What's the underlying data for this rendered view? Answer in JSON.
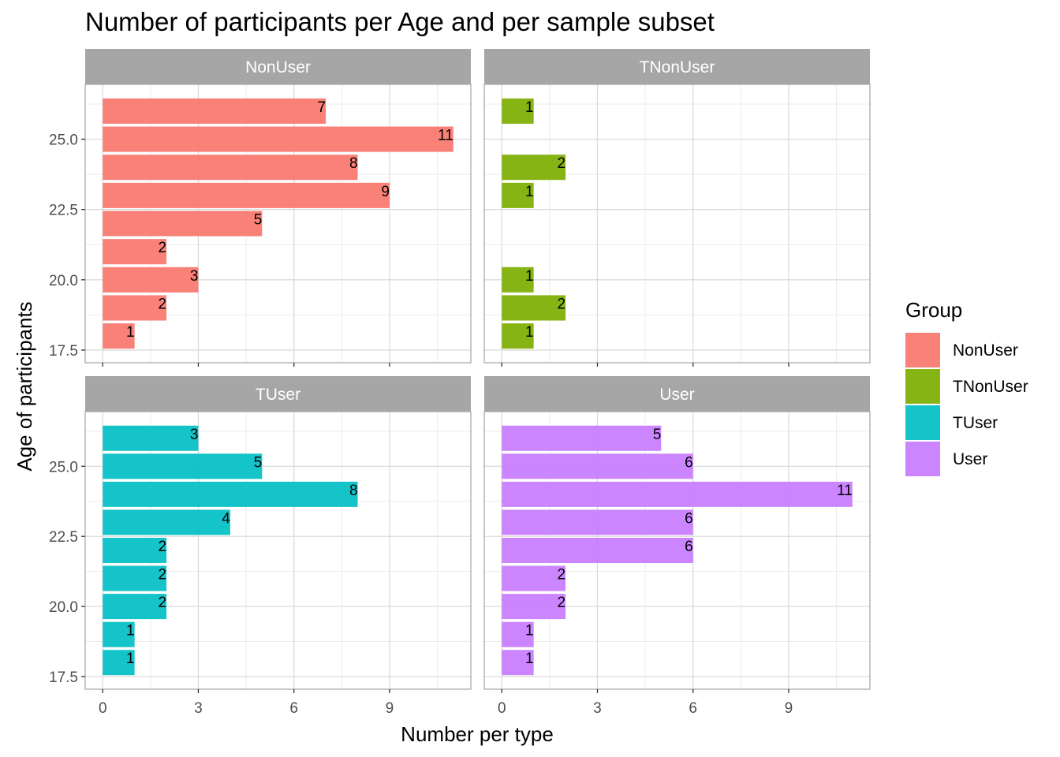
{
  "chart_data": {
    "type": "bar",
    "orientation": "horizontal",
    "title": "Number of participants per Age and per sample subset",
    "xlabel": "Number per type",
    "ylabel": "Age of participants",
    "xlim": [
      0,
      11
    ],
    "ylim": [
      17.5,
      26.5
    ],
    "x_ticks": [
      0,
      3,
      6,
      9
    ],
    "y_ticks": [
      17.5,
      20.0,
      22.5,
      25.0
    ],
    "y_tick_labels": [
      "17.5",
      "20.0",
      "22.5",
      "25.0"
    ],
    "x_tick_labels": [
      "0",
      "3",
      "6",
      "9"
    ],
    "grid": true,
    "legend": {
      "title": "Group",
      "position": "right",
      "entries": [
        {
          "name": "NonUser",
          "color": "#f8766d"
        },
        {
          "name": "TNonUser",
          "color": "#7cae00"
        },
        {
          "name": "TUser",
          "color": "#00bfc4"
        },
        {
          "name": "User",
          "color": "#c77cff"
        }
      ]
    },
    "panels": [
      {
        "name": "NonUser",
        "color": "#f8766d",
        "ages": [
          18,
          19,
          20,
          21,
          22,
          23,
          24,
          25,
          26
        ],
        "values": [
          1,
          2,
          3,
          2,
          5,
          9,
          8,
          11,
          7
        ]
      },
      {
        "name": "TNonUser",
        "color": "#7cae00",
        "ages": [
          18,
          19,
          20,
          23,
          24,
          26
        ],
        "values": [
          1,
          2,
          1,
          1,
          2,
          1
        ]
      },
      {
        "name": "TUser",
        "color": "#00bfc4",
        "ages": [
          18,
          19,
          20,
          21,
          22,
          23,
          24,
          25,
          26
        ],
        "values": [
          1,
          1,
          2,
          2,
          2,
          4,
          8,
          5,
          3
        ]
      },
      {
        "name": "User",
        "color": "#c77cff",
        "ages": [
          18,
          19,
          20,
          21,
          22,
          23,
          24,
          25,
          26
        ],
        "values": [
          1,
          1,
          2,
          2,
          6,
          6,
          11,
          6,
          5
        ]
      }
    ]
  }
}
